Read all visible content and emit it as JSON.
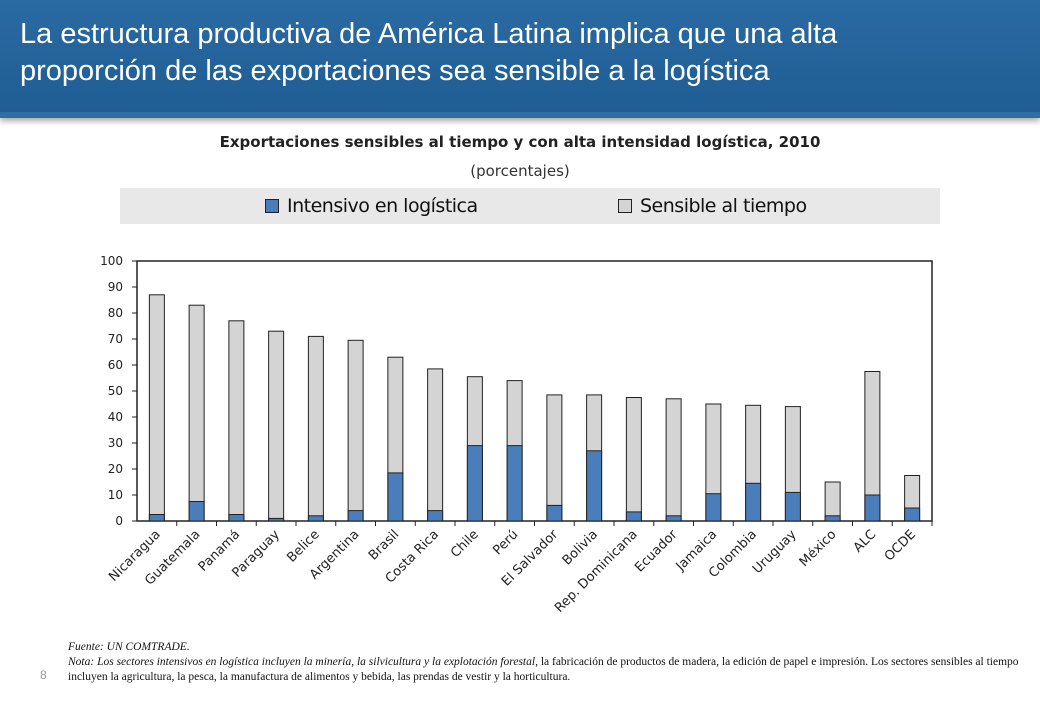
{
  "slide": {
    "title_line1": "La estructura productiva de América Latina implica que una alta",
    "title_line2": "proporción de las exportaciones sea sensible a la logística",
    "page_number": "8"
  },
  "notes": {
    "source": "Fuente: UN COMTRADE.",
    "note_italic": "Nota: Los sectores intensivos en logística incluyen la minería, la silvicultura y la explotación forestal,",
    "note_rest": " la fabricación de productos de madera, la edición de papel e impresión. Los sectores sensibles al tiempo incluyen la agricultura, la pesca, la manufactura de alimentos y bebida, las prendas de vestir y la horticultura."
  },
  "colors": {
    "logistics": "#4a7ebb",
    "time": "#d4d4d4",
    "border": "#222222"
  },
  "chart_data": {
    "type": "bar",
    "stacked": false,
    "title": "Exportaciones sensibles al tiempo y con alta intensidad logística, 2010",
    "subtitle": "(porcentajes)",
    "ylim": [
      0,
      100
    ],
    "yticks": [
      0,
      10,
      20,
      30,
      40,
      50,
      60,
      70,
      80,
      90,
      100
    ],
    "legend": [
      "Intensivo en logística",
      "Sensible al tiempo"
    ],
    "legend_position": "top",
    "categories": [
      "Nicaragua",
      "Guatemala",
      "Panamá",
      "Paraguay",
      "Belice",
      "Argentina",
      "Brasil",
      "Costa Rica",
      "Chile",
      "Perú",
      "El Salvador",
      "Bolivia",
      "Rep. Dominicana",
      "Ecuador",
      "Jamaica",
      "Colombia",
      "Uruguay",
      "México",
      "ALC",
      "OCDE"
    ],
    "series": [
      {
        "name": "Sensible al tiempo",
        "values": [
          87,
          83,
          77,
          73,
          71,
          69.5,
          63,
          58.5,
          55.5,
          54,
          48.5,
          48.5,
          47.5,
          47,
          45,
          44.5,
          44,
          15,
          57.5,
          17.5
        ]
      },
      {
        "name": "Intensivo en logística",
        "values": [
          2.5,
          7.5,
          2.5,
          1,
          2,
          4,
          18.5,
          4,
          29,
          29,
          6,
          27,
          3.5,
          2,
          10.5,
          14.5,
          11,
          2,
          10,
          5
        ]
      }
    ]
  }
}
